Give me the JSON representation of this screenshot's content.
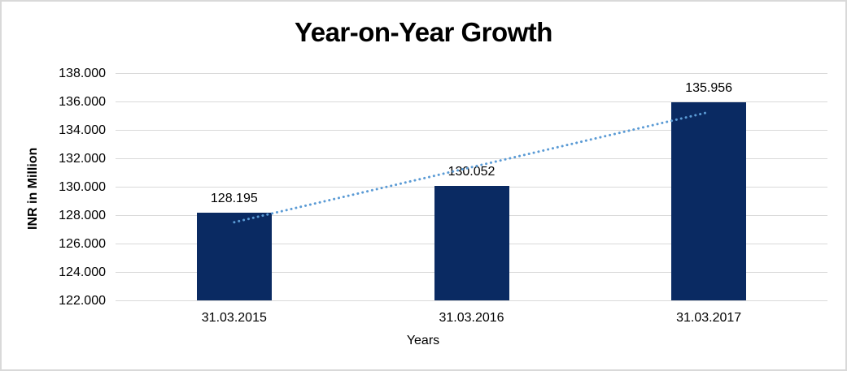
{
  "colors": {
    "background": "#ffffff",
    "frame_border": "#d9d9d9",
    "gridline": "#d9d9d9",
    "bar": "#0a2a62",
    "trendline": "#5b9bd5",
    "text": "#000000"
  },
  "chart_data": {
    "type": "bar",
    "title": "Year-on-Year Growth",
    "xlabel": "Years",
    "ylabel": "INR in Million",
    "categories": [
      "31.03.2015",
      "31.03.2016",
      "31.03.2017"
    ],
    "values": [
      128.195,
      130.052,
      135.956
    ],
    "data_labels": [
      "128.195",
      "130.052",
      "135.956"
    ],
    "ylim": [
      122,
      138
    ],
    "ytick_step": 2,
    "yticks": [
      {
        "label": "138.000",
        "value": 138
      },
      {
        "label": "136.000",
        "value": 136
      },
      {
        "label": "134.000",
        "value": 134
      },
      {
        "label": "132.000",
        "value": 132
      },
      {
        "label": "130.000",
        "value": 130
      },
      {
        "label": "128.000",
        "value": 128
      },
      {
        "label": "126.000",
        "value": 126
      },
      {
        "label": "124.000",
        "value": 124
      },
      {
        "label": "122.000",
        "value": 122
      }
    ],
    "grid": true,
    "legend": "none",
    "trendline": {
      "type": "linear",
      "style": "dotted",
      "start_value": 127.5,
      "end_value": 135.25
    }
  }
}
